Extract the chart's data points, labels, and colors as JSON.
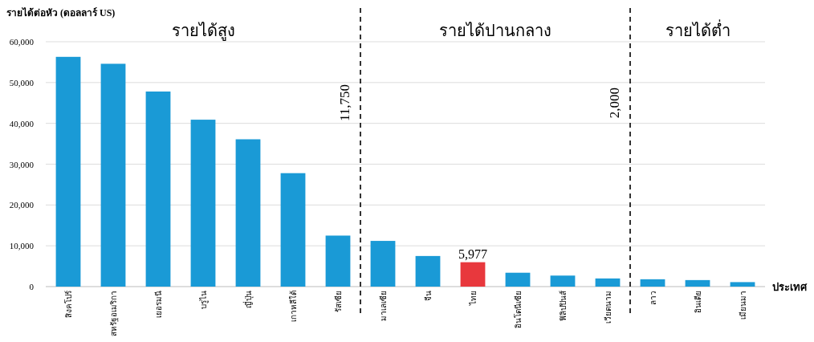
{
  "chart_data": {
    "type": "bar",
    "ylabel": "รายได้ต่อหัว (ดอลลาร์ US)",
    "xlabel": "ประเทศ",
    "annotations": [
      "รายได้สูง",
      "รายได้ปานกลาง",
      "รายได้ต่ำ",
      "11,750",
      "2,000"
    ],
    "categories": [
      "สิงคโปร์",
      "สหรัฐอเมริกา",
      "เยอรมนี",
      "บรูไน",
      "ญี่ปุ่น",
      "เกาหลีใต้",
      "รัสเซีย",
      "มาเลเซีย",
      "จีน",
      "ไทย",
      "อินโดนีเซีย",
      "ฟิลิปปินส์",
      "เวียดนาม",
      "ลาว",
      "อินเดีย",
      "เมียนมา"
    ],
    "values": [
      56300,
      54600,
      47800,
      40900,
      36100,
      27800,
      12500,
      11200,
      7500,
      5977,
      3400,
      2700,
      2000,
      1800,
      1600,
      1100
    ],
    "colors": [
      "#1a9ad6",
      "#1a9ad6",
      "#1a9ad6",
      "#1a9ad6",
      "#1a9ad6",
      "#1a9ad6",
      "#1a9ad6",
      "#1a9ad6",
      "#1a9ad6",
      "#e8383d",
      "#1a9ad6",
      "#1a9ad6",
      "#1a9ad6",
      "#1a9ad6",
      "#1a9ad6",
      "#1a9ad6"
    ],
    "value_labels": [
      null,
      null,
      null,
      null,
      null,
      null,
      null,
      null,
      null,
      "5,977",
      null,
      null,
      null,
      null,
      null,
      null
    ],
    "ylim": [
      0,
      60000
    ],
    "yticks": [
      {
        "value": 0,
        "label": "0"
      },
      {
        "value": 10000,
        "label": "10,000"
      },
      {
        "value": 20000,
        "label": "20,000"
      },
      {
        "value": 30000,
        "label": "30,000"
      },
      {
        "value": 40000,
        "label": "40,000"
      },
      {
        "value": 50000,
        "label": "50,000"
      },
      {
        "value": 60000,
        "label": "60,000"
      }
    ],
    "grid": "y"
  }
}
